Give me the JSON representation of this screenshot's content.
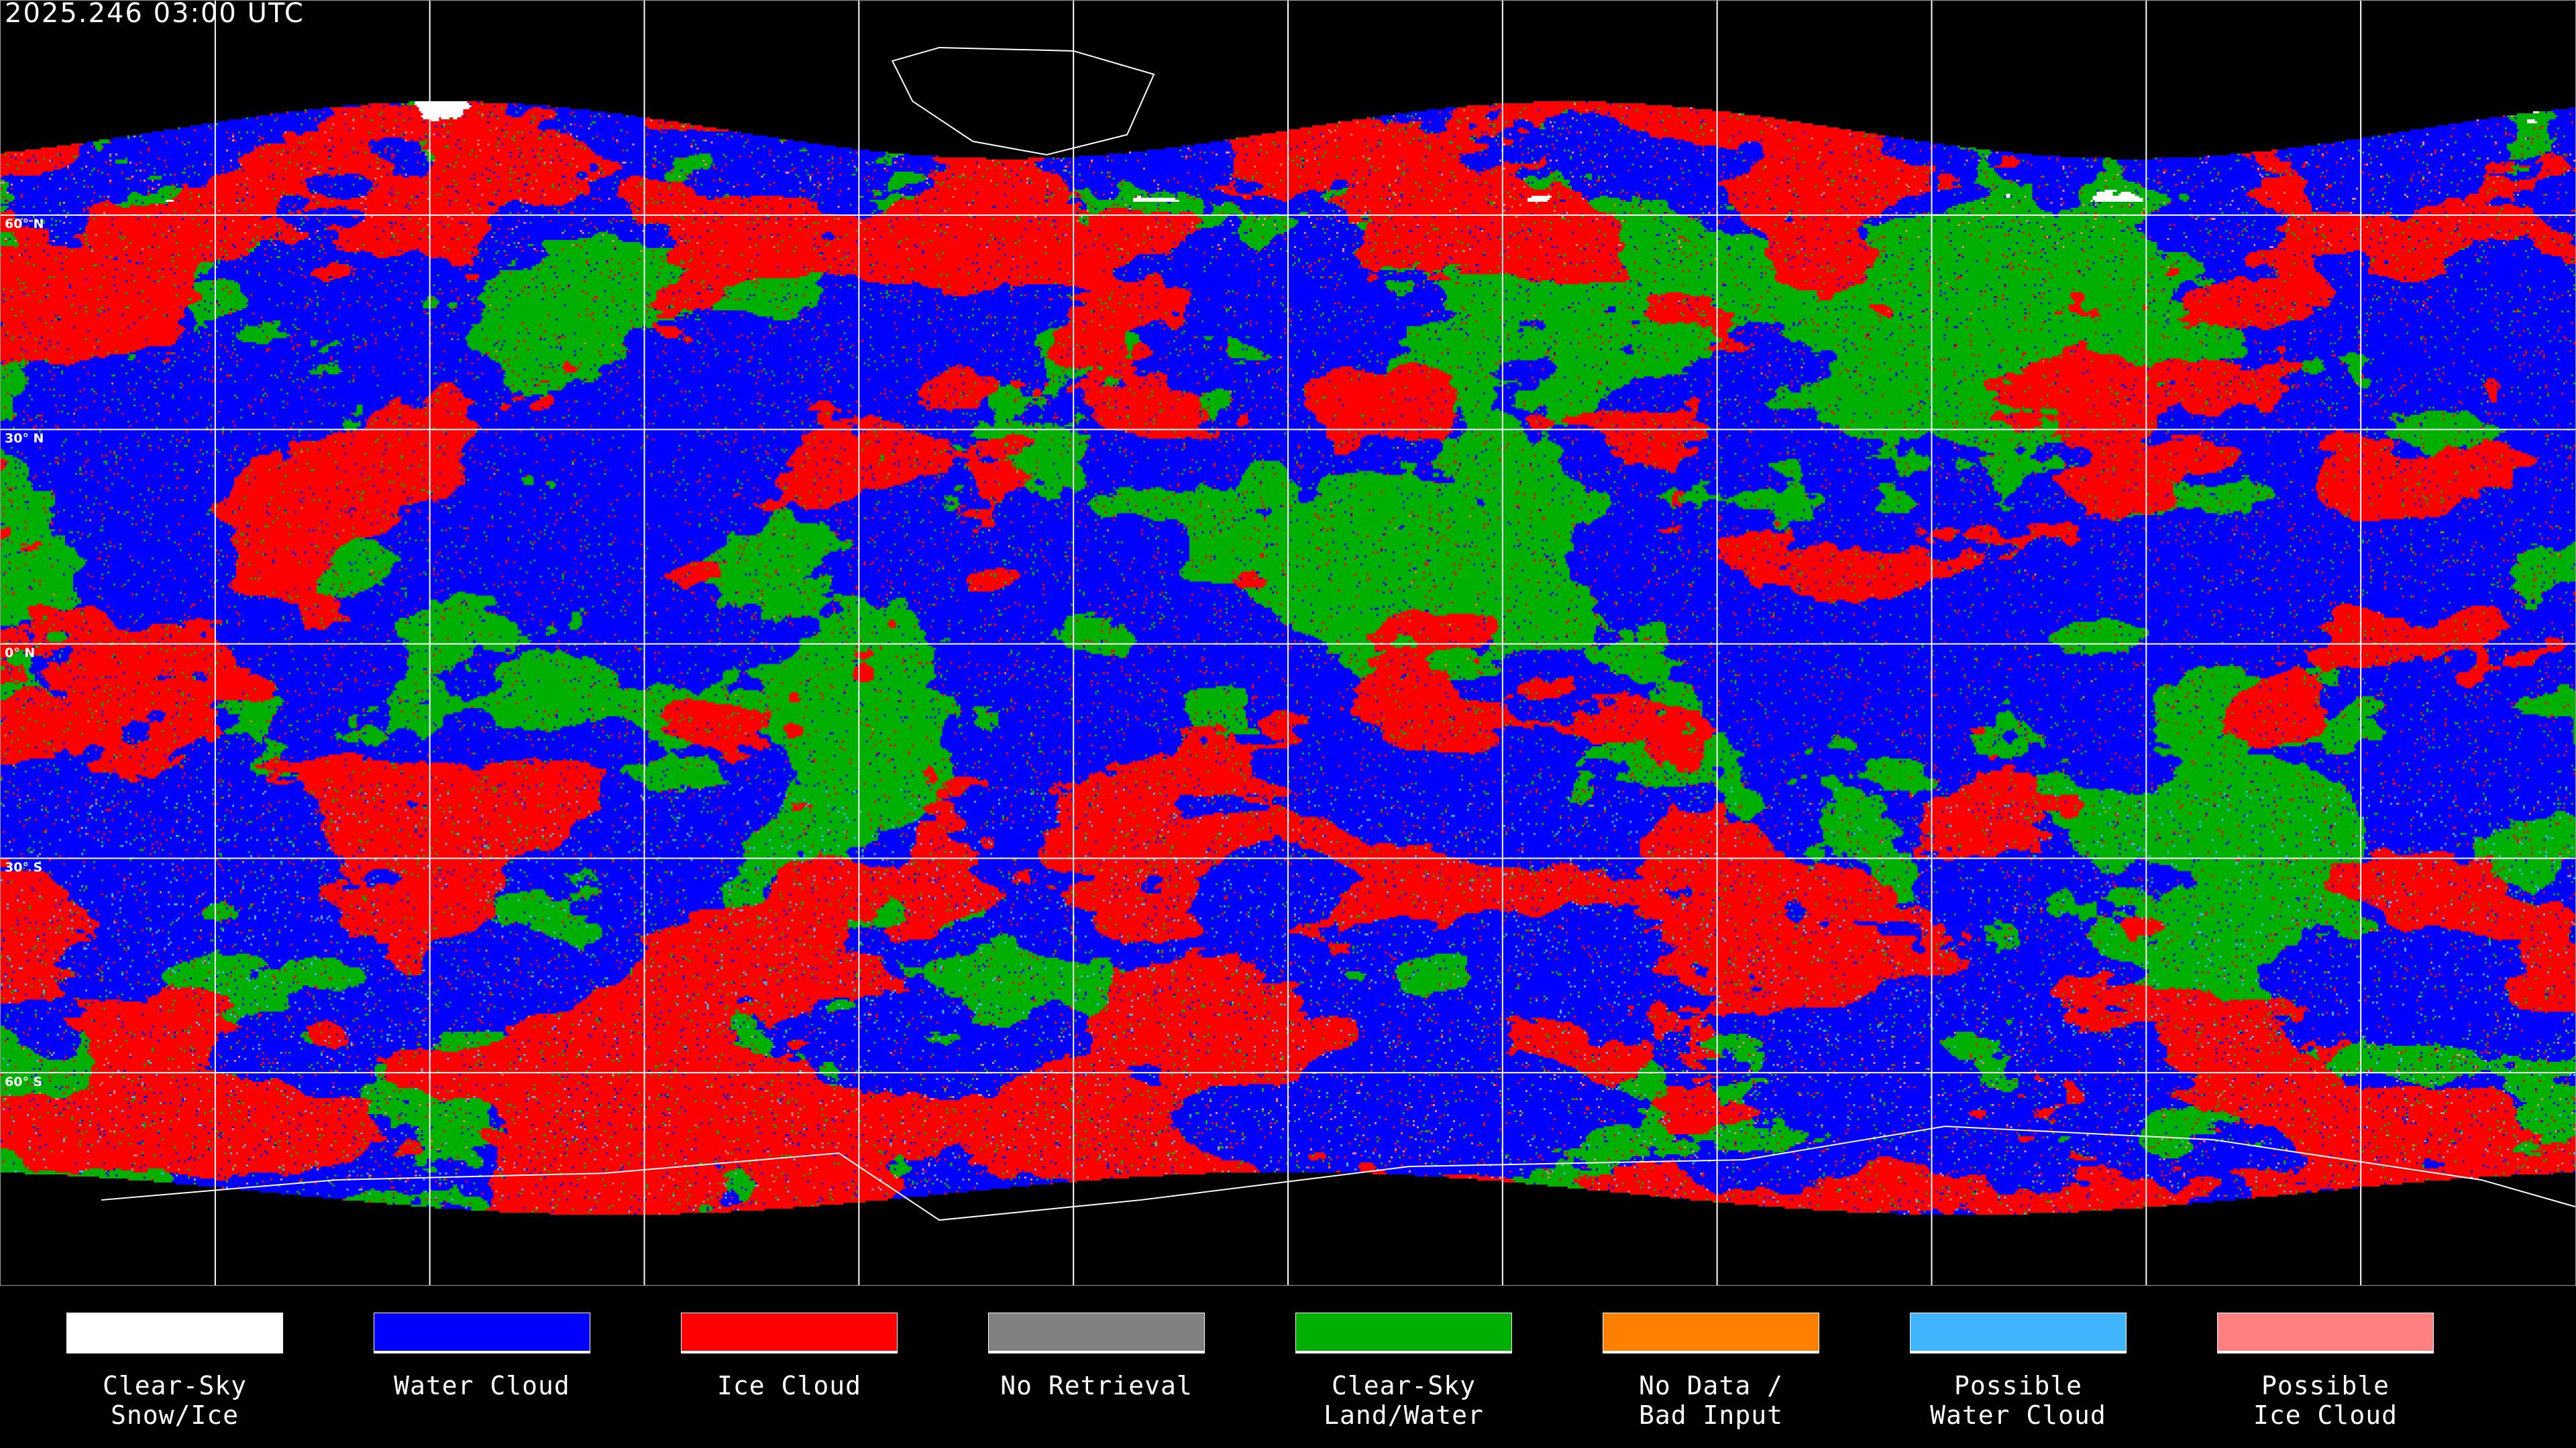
{
  "title": "2025.246 03:00 UTC",
  "latitude_labels": [
    "60° N",
    "30° N",
    "0° N",
    "30° S",
    "60° S"
  ],
  "legend": [
    {
      "line1": "Clear-Sky",
      "line2": "Snow/Ice",
      "color": "#ffffff"
    },
    {
      "line1": "Water Cloud",
      "line2": "",
      "color": "#0000ff"
    },
    {
      "line1": "Ice Cloud",
      "line2": "",
      "color": "#ff0000"
    },
    {
      "line1": "No Retrieval",
      "line2": "",
      "color": "#808080"
    },
    {
      "line1": "Clear-Sky",
      "line2": "Land/Water",
      "color": "#00b000"
    },
    {
      "line1": "No Data /",
      "line2": "Bad Input",
      "color": "#ff8000"
    },
    {
      "line1": "Possible",
      "line2": "Water Cloud",
      "color": "#40b4ff"
    },
    {
      "line1": "Possible",
      "line2": "Ice Cloud",
      "color": "#ff8080"
    }
  ]
}
